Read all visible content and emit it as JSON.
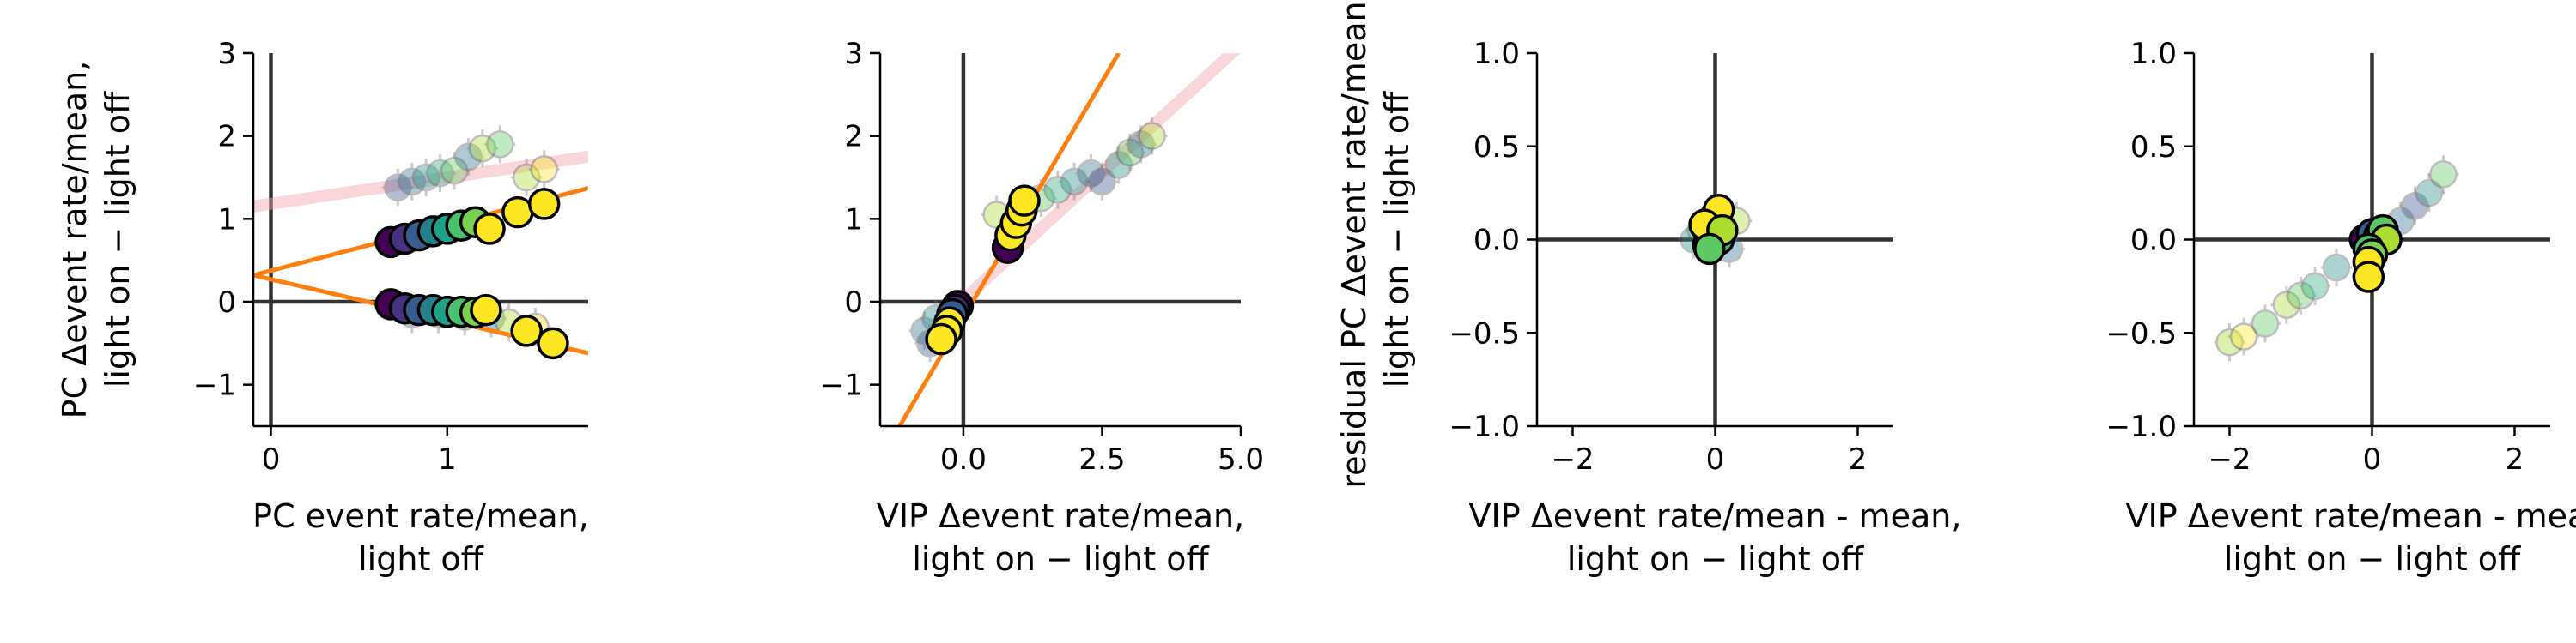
{
  "chart_data": [
    {
      "type": "scatter",
      "xlabel": [
        "PC event rate/mean,",
        "light off"
      ],
      "ylabel": [
        "PC  Δevent rate/mean,",
        "light on − light off"
      ],
      "xlim": [
        -0.1,
        1.8
      ],
      "ylim": [
        -1.5,
        3.0
      ],
      "xticks": [
        0,
        1
      ],
      "xtick_labels": [
        "0",
        "1"
      ],
      "yticks": [
        -1,
        0,
        1,
        2,
        3
      ],
      "ytick_labels": [
        "−1",
        "0",
        "1",
        "2",
        "3"
      ],
      "zero_lines": {
        "x": true,
        "y": true
      },
      "series": [
        {
          "role": "highlight",
          "points": [
            {
              "x": 0.68,
              "y": 0.72,
              "c": "#440154"
            },
            {
              "x": 0.76,
              "y": 0.76,
              "c": "#46327e"
            },
            {
              "x": 0.84,
              "y": 0.8,
              "c": "#365c8d"
            },
            {
              "x": 0.92,
              "y": 0.85,
              "c": "#277f8e"
            },
            {
              "x": 1.0,
              "y": 0.88,
              "c": "#1fa187"
            },
            {
              "x": 1.08,
              "y": 0.92,
              "c": "#4ac16d"
            },
            {
              "x": 1.16,
              "y": 0.96,
              "c": "#7ad151"
            },
            {
              "x": 1.24,
              "y": 0.88,
              "c": "#fde725"
            },
            {
              "x": 1.4,
              "y": 1.08,
              "c": "#fde725"
            },
            {
              "x": 1.55,
              "y": 1.18,
              "c": "#fde725"
            },
            {
              "x": 0.68,
              "y": -0.03,
              "c": "#440154"
            },
            {
              "x": 0.76,
              "y": -0.08,
              "c": "#46327e"
            },
            {
              "x": 0.84,
              "y": -0.1,
              "c": "#365c8d"
            },
            {
              "x": 0.92,
              "y": -0.1,
              "c": "#277f8e"
            },
            {
              "x": 1.0,
              "y": -0.12,
              "c": "#1fa187"
            },
            {
              "x": 1.08,
              "y": -0.12,
              "c": "#4ac16d"
            },
            {
              "x": 1.16,
              "y": -0.13,
              "c": "#7ad151"
            },
            {
              "x": 1.22,
              "y": -0.1,
              "c": "#fde725"
            },
            {
              "x": 1.45,
              "y": -0.35,
              "c": "#fde725"
            },
            {
              "x": 1.6,
              "y": -0.5,
              "c": "#fde725"
            }
          ]
        },
        {
          "role": "background",
          "points": [
            {
              "x": 0.72,
              "y": 1.38,
              "c": "#3b528b"
            },
            {
              "x": 0.8,
              "y": 1.45,
              "c": "#2c728e"
            },
            {
              "x": 0.88,
              "y": 1.5,
              "c": "#21918c"
            },
            {
              "x": 0.96,
              "y": 1.55,
              "c": "#28ae80"
            },
            {
              "x": 1.04,
              "y": 1.58,
              "c": "#5ec962"
            },
            {
              "x": 1.12,
              "y": 1.75,
              "c": "#2c728e"
            },
            {
              "x": 1.2,
              "y": 1.85,
              "c": "#addc30"
            },
            {
              "x": 1.3,
              "y": 1.9,
              "c": "#5ec962"
            },
            {
              "x": 1.45,
              "y": 1.5,
              "c": "#addc30"
            },
            {
              "x": 1.55,
              "y": 1.6,
              "c": "#fde725"
            },
            {
              "x": 0.8,
              "y": -0.15,
              "c": "#3b528b"
            },
            {
              "x": 0.95,
              "y": -0.15,
              "c": "#21918c"
            },
            {
              "x": 1.1,
              "y": -0.18,
              "c": "#5ec962"
            },
            {
              "x": 1.25,
              "y": -0.2,
              "c": "#2c728e"
            },
            {
              "x": 1.35,
              "y": -0.25,
              "c": "#addc30"
            },
            {
              "x": 1.5,
              "y": -0.3,
              "c": "#fde725"
            }
          ]
        }
      ],
      "fit_lines": [
        {
          "color": "#ff7f0e",
          "x": [
            -0.1,
            1.8
          ],
          "y": [
            0.32,
            1.37
          ]
        },
        {
          "color": "#ff7f0e",
          "x": [
            -0.1,
            1.8
          ],
          "y": [
            0.32,
            -0.62
          ]
        },
        {
          "color": "#f4a3ae",
          "alpha": 0.45,
          "x": [
            -0.1,
            1.8
          ],
          "y": [
            1.15,
            1.75
          ]
        }
      ]
    },
    {
      "type": "scatter",
      "xlabel": [
        "VIP Δevent rate/mean,",
        "light on − light off"
      ],
      "ylabel": [],
      "xlim": [
        -1.5,
        5.0
      ],
      "ylim": [
        -1.5,
        3.0
      ],
      "xticks": [
        0,
        2.5,
        5.0
      ],
      "xtick_labels": [
        "0.0",
        "2.5",
        "5.0"
      ],
      "yticks": [
        -1,
        0,
        1,
        2,
        3
      ],
      "ytick_labels": [
        "−1",
        "0",
        "1",
        "2",
        "3"
      ],
      "zero_lines": {
        "x": true,
        "y": true
      },
      "series": [
        {
          "role": "highlight",
          "points": [
            {
              "x": 0.8,
              "y": 0.65,
              "c": "#440154"
            },
            {
              "x": 0.85,
              "y": 0.8,
              "c": "#fde725"
            },
            {
              "x": 0.95,
              "y": 0.95,
              "c": "#fde725"
            },
            {
              "x": 1.05,
              "y": 1.1,
              "c": "#fde725"
            },
            {
              "x": 1.1,
              "y": 1.22,
              "c": "#fde725"
            },
            {
              "x": -0.1,
              "y": -0.05,
              "c": "#440154"
            },
            {
              "x": -0.15,
              "y": -0.1,
              "c": "#46327e"
            },
            {
              "x": -0.2,
              "y": -0.15,
              "c": "#365c8d"
            },
            {
              "x": -0.25,
              "y": -0.25,
              "c": "#fde725"
            },
            {
              "x": -0.3,
              "y": -0.35,
              "c": "#fde725"
            },
            {
              "x": -0.4,
              "y": -0.45,
              "c": "#fde725"
            }
          ]
        },
        {
          "role": "background",
          "points": [
            {
              "x": 0.6,
              "y": 1.05,
              "c": "#addc30"
            },
            {
              "x": 1.4,
              "y": 1.25,
              "c": "#5ec962"
            },
            {
              "x": 1.7,
              "y": 1.35,
              "c": "#28ae80"
            },
            {
              "x": 2.0,
              "y": 1.45,
              "c": "#21918c"
            },
            {
              "x": 2.3,
              "y": 1.55,
              "c": "#2c728e"
            },
            {
              "x": 2.5,
              "y": 1.45,
              "c": "#3b528b"
            },
            {
              "x": 2.8,
              "y": 1.65,
              "c": "#21918c"
            },
            {
              "x": 3.0,
              "y": 1.8,
              "c": "#5ec962"
            },
            {
              "x": 3.2,
              "y": 1.9,
              "c": "#2c728e"
            },
            {
              "x": 3.4,
              "y": 2.0,
              "c": "#addc30"
            },
            {
              "x": -0.7,
              "y": -0.35,
              "c": "#2c728e"
            },
            {
              "x": -0.6,
              "y": -0.5,
              "c": "#3b528b"
            },
            {
              "x": -0.5,
              "y": -0.2,
              "c": "#21918c"
            }
          ]
        }
      ],
      "fit_lines": [
        {
          "color": "#ff7f0e",
          "x": [
            -1.5,
            2.8
          ],
          "y": [
            -1.9,
            3.0
          ]
        },
        {
          "color": "#f4a3ae",
          "alpha": 0.45,
          "x": [
            -0.2,
            5.0
          ],
          "y": [
            -0.1,
            3.1
          ]
        }
      ]
    },
    {
      "type": "scatter",
      "xlabel": [
        "VIP Δevent rate/mean - mean,",
        "light on − light off"
      ],
      "ylabel": [
        "residual PC Δevent rate/mean,",
        "light on − light off"
      ],
      "xlim": [
        -2.5,
        2.5
      ],
      "ylim": [
        -1.0,
        1.0
      ],
      "xticks": [
        -2,
        0,
        2
      ],
      "xtick_labels": [
        "−2",
        "0",
        "2"
      ],
      "yticks": [
        -1.0,
        -0.5,
        0.0,
        0.5,
        1.0
      ],
      "ytick_labels": [
        "−1.0",
        "−0.5",
        "0.0",
        "0.5",
        "1.0"
      ],
      "zero_lines": {
        "x": true,
        "y": true
      },
      "series": [
        {
          "role": "highlight",
          "points": [
            {
              "x": -0.05,
              "y": 0.02,
              "c": "#440154"
            },
            {
              "x": -0.1,
              "y": -0.03,
              "c": "#21918c"
            },
            {
              "x": -0.02,
              "y": -0.02,
              "c": "#5ec962"
            },
            {
              "x": 0.05,
              "y": 0.0,
              "c": "#4ac16d"
            },
            {
              "x": -0.1,
              "y": 0.05,
              "c": "#7ad151"
            },
            {
              "x": 0.0,
              "y": 0.12,
              "c": "#fde725"
            },
            {
              "x": 0.05,
              "y": 0.16,
              "c": "#fde725"
            },
            {
              "x": -0.15,
              "y": 0.08,
              "c": "#fde725"
            },
            {
              "x": 0.1,
              "y": 0.05,
              "c": "#addc30"
            },
            {
              "x": -0.08,
              "y": -0.05,
              "c": "#5ec962"
            }
          ]
        },
        {
          "role": "background",
          "points": [
            {
              "x": 0.3,
              "y": 0.1,
              "c": "#addc30"
            },
            {
              "x": -0.3,
              "y": 0.0,
              "c": "#21918c"
            },
            {
              "x": 0.2,
              "y": -0.05,
              "c": "#2c728e"
            },
            {
              "x": -0.2,
              "y": 0.05,
              "c": "#5ec962"
            }
          ]
        }
      ],
      "fit_lines": []
    },
    {
      "type": "scatter",
      "xlabel": [
        "VIP Δevent rate/mean - mean,",
        "light on − light off"
      ],
      "ylabel": [],
      "xlim": [
        -2.5,
        2.5
      ],
      "ylim": [
        -1.0,
        1.0
      ],
      "xticks": [
        -2,
        0,
        2
      ],
      "xtick_labels": [
        "−2",
        "0",
        "2"
      ],
      "yticks": [
        -1.0,
        -0.5,
        0.0,
        0.5,
        1.0
      ],
      "ytick_labels": [
        "−1.0",
        "−0.5",
        "0.0",
        "0.5",
        "1.0"
      ],
      "zero_lines": {
        "x": true,
        "y": true
      },
      "series": [
        {
          "role": "highlight",
          "points": [
            {
              "x": -0.1,
              "y": 0.0,
              "c": "#440154"
            },
            {
              "x": 0.0,
              "y": 0.03,
              "c": "#365c8d"
            },
            {
              "x": 0.1,
              "y": 0.02,
              "c": "#21918c"
            },
            {
              "x": 0.15,
              "y": 0.05,
              "c": "#5ec962"
            },
            {
              "x": 0.2,
              "y": 0.0,
              "c": "#addc30"
            },
            {
              "x": -0.05,
              "y": -0.05,
              "c": "#4ac16d"
            },
            {
              "x": 0.0,
              "y": -0.08,
              "c": "#7ad151"
            },
            {
              "x": -0.05,
              "y": -0.12,
              "c": "#fde725"
            },
            {
              "x": -0.05,
              "y": -0.2,
              "c": "#fde725"
            }
          ]
        },
        {
          "role": "background",
          "points": [
            {
              "x": -2.0,
              "y": -0.55,
              "c": "#addc30"
            },
            {
              "x": -1.8,
              "y": -0.52,
              "c": "#fde725"
            },
            {
              "x": -1.5,
              "y": -0.45,
              "c": "#5ec962"
            },
            {
              "x": -1.2,
              "y": -0.35,
              "c": "#addc30"
            },
            {
              "x": -1.0,
              "y": -0.3,
              "c": "#5ec962"
            },
            {
              "x": -0.8,
              "y": -0.25,
              "c": "#28ae80"
            },
            {
              "x": -0.5,
              "y": -0.15,
              "c": "#21918c"
            },
            {
              "x": 0.4,
              "y": 0.1,
              "c": "#2c728e"
            },
            {
              "x": 0.6,
              "y": 0.18,
              "c": "#3b528b"
            },
            {
              "x": 0.8,
              "y": 0.25,
              "c": "#21918c"
            },
            {
              "x": 1.0,
              "y": 0.35,
              "c": "#5ec962"
            }
          ]
        }
      ],
      "fit_lines": []
    }
  ]
}
